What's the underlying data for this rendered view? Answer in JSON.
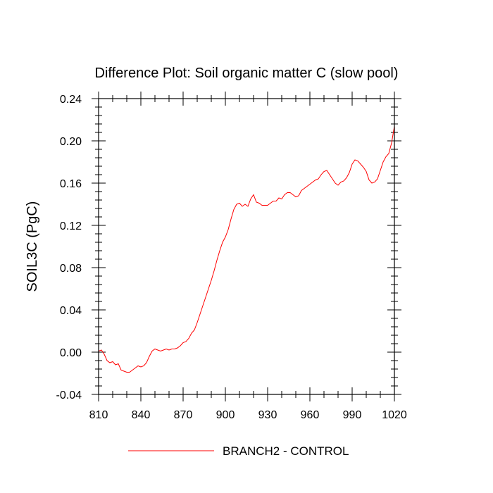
{
  "chart_data": {
    "type": "line",
    "title": "Difference Plot: Soil organic matter C (slow pool)",
    "xlabel": "",
    "ylabel": "SOIL3C  (PgC)",
    "xlim": [
      810,
      1020
    ],
    "ylim": [
      -0.04,
      0.24
    ],
    "xticks": [
      810,
      840,
      870,
      900,
      930,
      960,
      990,
      1020
    ],
    "xtick_labels": [
      "810",
      "840",
      "870",
      "900",
      "930",
      "960",
      "990",
      "1020"
    ],
    "yticks": [
      -0.04,
      0.0,
      0.04,
      0.08,
      0.12,
      0.16,
      0.2,
      0.24
    ],
    "ytick_labels": [
      "-0.04",
      "0.00",
      "0.04",
      "0.08",
      "0.12",
      "0.16",
      "0.20",
      "0.24"
    ],
    "legend_placement": "bottom-center",
    "series": [
      {
        "name": "BRANCH2 - CONTROL",
        "color": "#ff0000",
        "x": [
          810,
          812,
          814,
          816,
          818,
          820,
          822,
          824,
          826,
          828,
          830,
          832,
          834,
          836,
          838,
          840,
          842,
          844,
          846,
          848,
          850,
          852,
          854,
          856,
          858,
          860,
          862,
          864,
          866,
          868,
          870,
          872,
          874,
          876,
          878,
          880,
          882,
          884,
          886,
          888,
          890,
          892,
          894,
          896,
          898,
          900,
          902,
          904,
          906,
          908,
          910,
          912,
          914,
          916,
          918,
          920,
          922,
          924,
          926,
          928,
          930,
          932,
          934,
          936,
          938,
          940,
          942,
          944,
          946,
          948,
          950,
          952,
          954,
          956,
          958,
          960,
          962,
          964,
          966,
          968,
          970,
          972,
          974,
          976,
          978,
          980,
          982,
          984,
          986,
          988,
          990,
          992,
          994,
          996,
          998,
          1000,
          1002,
          1004,
          1006,
          1008,
          1010,
          1012,
          1014,
          1016,
          1018,
          1020
        ],
        "y": [
          0.001,
          0.002,
          -0.002,
          -0.008,
          -0.01,
          -0.009,
          -0.012,
          -0.011,
          -0.017,
          -0.018,
          -0.019,
          -0.019,
          -0.017,
          -0.015,
          -0.013,
          -0.014,
          -0.013,
          -0.01,
          -0.004,
          0.001,
          0.003,
          0.002,
          0.001,
          0.002,
          0.003,
          0.002,
          0.003,
          0.003,
          0.004,
          0.006,
          0.009,
          0.01,
          0.013,
          0.018,
          0.021,
          0.028,
          0.036,
          0.044,
          0.052,
          0.06,
          0.068,
          0.077,
          0.087,
          0.096,
          0.104,
          0.109,
          0.116,
          0.126,
          0.135,
          0.14,
          0.141,
          0.138,
          0.14,
          0.138,
          0.145,
          0.149,
          0.142,
          0.141,
          0.139,
          0.139,
          0.139,
          0.141,
          0.143,
          0.143,
          0.146,
          0.145,
          0.149,
          0.151,
          0.151,
          0.149,
          0.147,
          0.148,
          0.153,
          0.155,
          0.157,
          0.159,
          0.161,
          0.163,
          0.164,
          0.168,
          0.171,
          0.172,
          0.168,
          0.164,
          0.16,
          0.158,
          0.161,
          0.162,
          0.165,
          0.17,
          0.178,
          0.182,
          0.181,
          0.178,
          0.175,
          0.171,
          0.163,
          0.16,
          0.161,
          0.164,
          0.172,
          0.18,
          0.185,
          0.188,
          0.198,
          0.214
        ]
      }
    ]
  }
}
